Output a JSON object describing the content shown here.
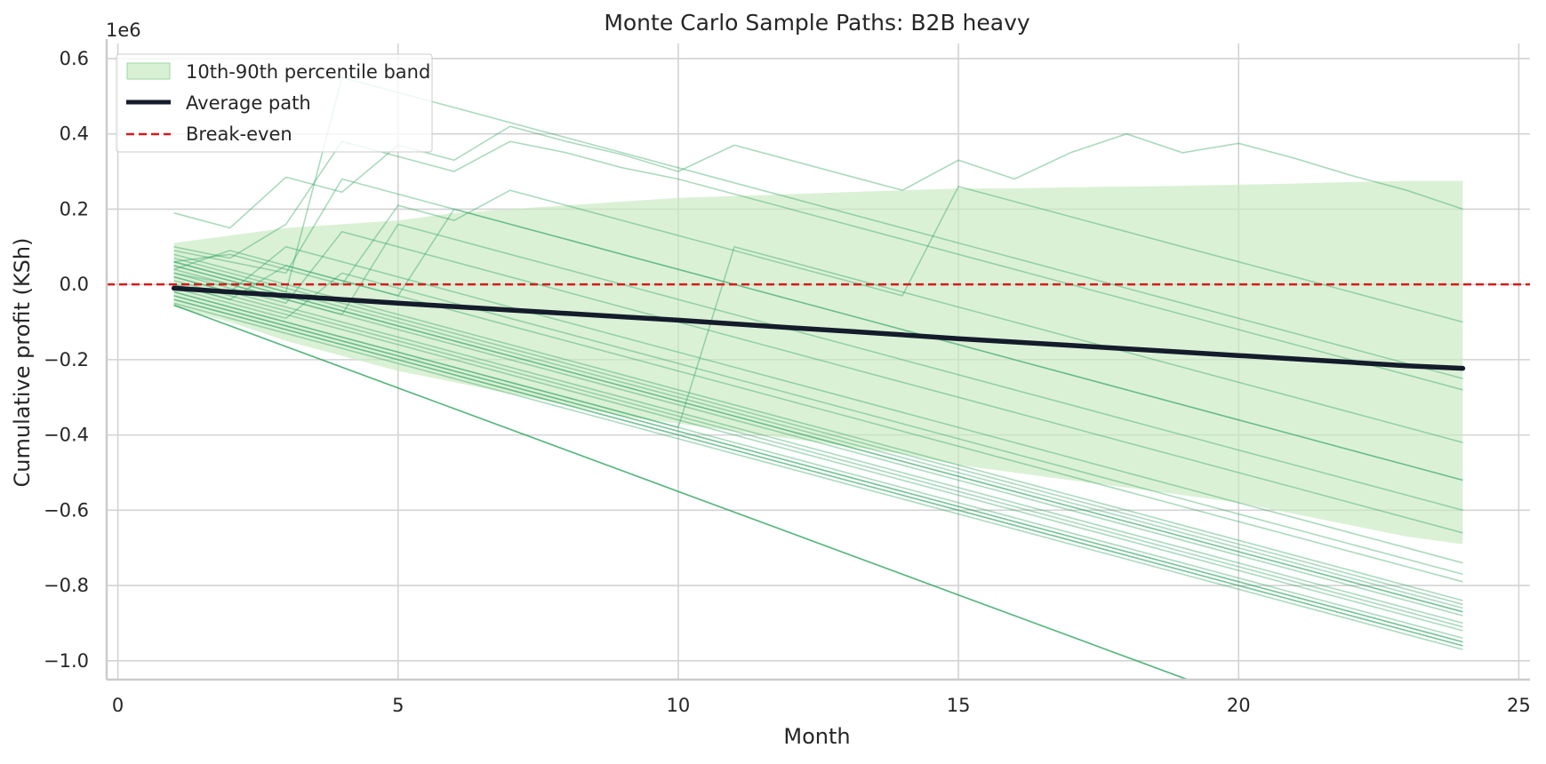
{
  "chart_data": {
    "type": "line",
    "title": "Monte Carlo Sample Paths: B2B heavy",
    "xlabel": "Month",
    "ylabel": "Cumulative profit (KSh)",
    "y_offset_label": "1e6",
    "xlim": [
      -0.2,
      25.2
    ],
    "ylim": [
      -1.05,
      0.64
    ],
    "x_ticks": [
      0,
      5,
      10,
      15,
      20,
      25
    ],
    "x_tick_labels": [
      "0",
      "5",
      "10",
      "15",
      "20",
      "25"
    ],
    "y_ticks": [
      0.6,
      0.4,
      0.2,
      0.0,
      -0.2,
      -0.4,
      -0.6,
      -0.8,
      -1.0
    ],
    "y_tick_labels": [
      "0.6",
      "0.4",
      "0.2",
      "0.0",
      "−0.2",
      "−0.4",
      "−0.6",
      "−0.8",
      "−1.0"
    ],
    "grid": true,
    "legend_position": "top-left",
    "legend": [
      {
        "label": "10th-90th percentile band",
        "kind": "band"
      },
      {
        "label": "Average path",
        "kind": "average"
      },
      {
        "label": "Break-even",
        "kind": "breakeven"
      }
    ],
    "colors": {
      "sample": "#2ca25f",
      "band": "#c7e9c0",
      "average": "#141c2b",
      "breakeven": "#d7191c",
      "grid": "#d3d3d3",
      "axis": "#cccccc"
    },
    "break_even": 0.0,
    "months": [
      1,
      2,
      3,
      4,
      5,
      6,
      7,
      8,
      9,
      10,
      11,
      12,
      13,
      14,
      15,
      16,
      17,
      18,
      19,
      20,
      21,
      22,
      23,
      24
    ],
    "average": [
      -0.01,
      -0.02,
      -0.03,
      -0.04,
      -0.05,
      -0.059,
      -0.068,
      -0.077,
      -0.086,
      -0.095,
      -0.105,
      -0.115,
      -0.124,
      -0.134,
      -0.144,
      -0.153,
      -0.162,
      -0.171,
      -0.18,
      -0.189,
      -0.198,
      -0.207,
      -0.216,
      -0.223
    ],
    "band_upper": [
      0.11,
      0.13,
      0.15,
      0.16,
      0.17,
      0.19,
      0.2,
      0.21,
      0.22,
      0.23,
      0.235,
      0.24,
      0.245,
      0.25,
      0.255,
      0.255,
      0.258,
      0.26,
      0.262,
      0.265,
      0.268,
      0.272,
      0.275,
      0.275
    ],
    "band_lower": [
      -0.06,
      -0.1,
      -0.15,
      -0.19,
      -0.23,
      -0.26,
      -0.29,
      -0.32,
      -0.35,
      -0.37,
      -0.39,
      -0.41,
      -0.43,
      -0.45,
      -0.48,
      -0.5,
      -0.52,
      -0.54,
      -0.56,
      -0.58,
      -0.61,
      -0.64,
      -0.67,
      -0.69
    ],
    "sample_paths": [
      [
        -0.055,
        -0.11,
        -0.165,
        -0.22,
        -0.275,
        -0.33,
        -0.385,
        -0.44,
        -0.495,
        -0.55,
        -0.605,
        -0.66,
        -0.715,
        -0.77,
        -0.825,
        -0.88,
        -0.935,
        -0.99,
        -1.045,
        -1.1,
        -1.155,
        -1.21,
        -1.265,
        -1.32
      ],
      [
        -0.055,
        -0.11,
        -0.165,
        -0.22,
        -0.275,
        -0.33,
        -0.385,
        -0.44,
        -0.495,
        -0.55,
        -0.605,
        -0.66,
        -0.715,
        -0.77,
        -0.825,
        -0.88,
        -0.935,
        -0.99,
        -1.045,
        -1.1,
        -1.155,
        -1.21,
        -1.265,
        -1.32
      ],
      [
        -0.055,
        -0.11,
        -0.165,
        -0.22,
        -0.275,
        -0.33,
        -0.385,
        -0.44,
        -0.495,
        -0.55,
        -0.605,
        -0.66,
        -0.715,
        -0.77,
        -0.825,
        -0.88,
        -0.935,
        -0.99,
        -1.045,
        -1.1,
        -1.155,
        -1.21,
        -1.265,
        -1.32
      ],
      [
        0.19,
        0.15,
        0.285,
        0.245,
        0.37,
        0.33,
        0.42,
        0.38,
        0.345,
        0.3,
        0.37,
        0.33,
        0.29,
        0.25,
        0.33,
        0.28,
        0.35,
        0.4,
        0.35,
        0.375,
        0.335,
        0.29,
        0.25,
        0.2
      ],
      [
        0.06,
        0.02,
        -0.02,
        0.55,
        0.51,
        0.47,
        0.43,
        0.39,
        0.35,
        0.31,
        0.27,
        0.23,
        0.19,
        0.15,
        0.11,
        0.07,
        0.03,
        -0.01,
        -0.05,
        -0.09,
        -0.13,
        -0.17,
        -0.21,
        -0.25
      ],
      [
        0.1,
        0.07,
        0.16,
        0.38,
        0.34,
        0.3,
        0.38,
        0.35,
        0.31,
        0.28,
        0.24,
        0.2,
        0.16,
        0.12,
        0.08,
        0.04,
        0.0,
        -0.04,
        -0.08,
        -0.12,
        -0.16,
        -0.2,
        -0.24,
        -0.28
      ],
      [
        0.09,
        0.06,
        0.03,
        0.28,
        0.24,
        0.2,
        0.16,
        0.12,
        0.08,
        0.04,
        0.0,
        -0.04,
        -0.08,
        -0.12,
        -0.16,
        -0.2,
        -0.24,
        -0.28,
        -0.32,
        -0.36,
        -0.4,
        -0.44,
        -0.48,
        -0.52
      ],
      [
        0.06,
        0.08,
        0.04,
        0.0,
        0.21,
        0.17,
        0.25,
        0.21,
        0.17,
        0.13,
        0.09,
        0.05,
        0.01,
        -0.03,
        0.26,
        0.22,
        0.18,
        0.14,
        0.1,
        0.06,
        0.02,
        -0.02,
        -0.06,
        -0.1
      ],
      [
        0.04,
        0.0,
        -0.04,
        -0.08,
        -0.12,
        -0.16,
        -0.2,
        -0.24,
        -0.28,
        -0.32,
        -0.36,
        -0.4,
        -0.44,
        -0.48,
        -0.52,
        -0.56,
        -0.6,
        -0.64,
        -0.68,
        -0.72,
        -0.76,
        -0.8,
        -0.84,
        -0.88
      ],
      [
        0.02,
        -0.02,
        -0.06,
        -0.1,
        -0.14,
        -0.18,
        -0.22,
        -0.26,
        -0.3,
        -0.34,
        -0.38,
        -0.42,
        -0.46,
        -0.5,
        -0.54,
        -0.58,
        -0.62,
        -0.66,
        -0.7,
        -0.74,
        -0.78,
        -0.82,
        -0.86,
        -0.9
      ],
      [
        0.03,
        -0.01,
        -0.05,
        0.14,
        0.1,
        0.06,
        0.02,
        -0.02,
        -0.06,
        -0.1,
        -0.14,
        -0.18,
        -0.22,
        -0.26,
        -0.3,
        -0.34,
        -0.38,
        -0.42,
        -0.46,
        -0.5,
        -0.54,
        -0.58,
        -0.62,
        -0.66
      ],
      [
        0.0,
        -0.04,
        0.05,
        0.01,
        -0.03,
        -0.07,
        -0.11,
        -0.15,
        -0.19,
        -0.23,
        -0.27,
        -0.31,
        -0.35,
        -0.39,
        -0.43,
        -0.47,
        -0.51,
        -0.55,
        -0.59,
        -0.63,
        -0.67,
        -0.71,
        -0.75,
        -0.79
      ],
      [
        -0.02,
        -0.06,
        -0.1,
        -0.14,
        -0.18,
        -0.22,
        -0.26,
        -0.3,
        -0.34,
        -0.38,
        -0.42,
        -0.46,
        -0.5,
        -0.54,
        -0.58,
        -0.62,
        -0.66,
        -0.7,
        -0.74,
        -0.78,
        -0.82,
        -0.86,
        -0.9,
        -0.94
      ],
      [
        -0.04,
        -0.08,
        -0.12,
        -0.16,
        -0.2,
        -0.24,
        -0.28,
        -0.32,
        -0.36,
        -0.4,
        -0.44,
        -0.48,
        -0.52,
        -0.56,
        -0.6,
        -0.64,
        -0.68,
        -0.72,
        -0.76,
        -0.8,
        -0.84,
        -0.88,
        -0.92,
        -0.96
      ],
      [
        0.08,
        0.04,
        0.0,
        -0.04,
        -0.08,
        -0.12,
        -0.16,
        -0.2,
        -0.24,
        -0.28,
        -0.32,
        -0.36,
        -0.4,
        -0.44,
        -0.48,
        -0.52,
        -0.56,
        -0.6,
        -0.64,
        -0.68,
        -0.72,
        -0.76,
        -0.8,
        -0.84
      ],
      [
        0.05,
        0.01,
        -0.03,
        -0.07,
        -0.11,
        -0.15,
        -0.19,
        -0.23,
        -0.27,
        -0.31,
        -0.35,
        -0.39,
        -0.43,
        -0.47,
        -0.51,
        -0.55,
        -0.59,
        -0.63,
        -0.67,
        -0.71,
        -0.75,
        -0.79,
        -0.83,
        -0.87
      ],
      [
        -0.03,
        -0.07,
        -0.11,
        -0.15,
        -0.19,
        -0.23,
        -0.27,
        -0.31,
        -0.35,
        -0.39,
        -0.43,
        -0.47,
        -0.51,
        -0.55,
        -0.59,
        -0.63,
        -0.67,
        -0.71,
        -0.75,
        -0.79,
        -0.83,
        -0.87,
        -0.91,
        -0.95
      ],
      [
        0.07,
        0.03,
        -0.01,
        -0.05,
        -0.09,
        -0.13,
        -0.17,
        -0.21,
        -0.25,
        -0.29,
        -0.33,
        -0.37,
        -0.41,
        -0.45,
        -0.49,
        -0.53,
        -0.57,
        -0.61,
        -0.65,
        -0.69,
        -0.73,
        -0.77,
        -0.81,
        -0.85
      ],
      [
        0.01,
        -0.03,
        -0.07,
        -0.11,
        -0.15,
        -0.19,
        -0.23,
        -0.27,
        -0.31,
        -0.35,
        -0.39,
        -0.43,
        -0.47,
        -0.51,
        -0.55,
        -0.59,
        -0.63,
        -0.67,
        -0.71,
        -0.75,
        -0.79,
        -0.83,
        -0.87,
        -0.91
      ],
      [
        0.04,
        0.09,
        0.05,
        0.01,
        -0.03,
        0.2,
        0.16,
        0.12,
        0.08,
        0.04,
        0.0,
        -0.04,
        -0.08,
        -0.12,
        -0.16,
        -0.2,
        -0.24,
        -0.28,
        -0.32,
        -0.36,
        -0.4,
        -0.44,
        -0.48,
        -0.52
      ],
      [
        -0.01,
        -0.05,
        -0.09,
        0.03,
        -0.01,
        -0.05,
        -0.09,
        -0.13,
        -0.17,
        -0.21,
        -0.25,
        -0.29,
        -0.33,
        -0.37,
        -0.41,
        -0.45,
        -0.49,
        -0.53,
        -0.57,
        -0.61,
        -0.65,
        -0.69,
        -0.73,
        -0.77
      ],
      [
        0.02,
        -0.02,
        0.1,
        0.06,
        0.02,
        -0.02,
        -0.06,
        -0.1,
        -0.14,
        -0.18,
        -0.22,
        -0.26,
        -0.3,
        -0.34,
        -0.38,
        -0.42,
        -0.46,
        -0.5,
        -0.54,
        -0.58,
        -0.62,
        -0.66,
        -0.7,
        -0.74
      ],
      [
        -0.05,
        -0.09,
        -0.13,
        -0.17,
        -0.21,
        -0.25,
        -0.29,
        -0.33,
        -0.37,
        -0.41,
        -0.45,
        -0.49,
        -0.53,
        -0.57,
        -0.61,
        -0.65,
        -0.69,
        -0.73,
        -0.77,
        -0.81,
        -0.85,
        -0.89,
        -0.93,
        -0.97
      ],
      [
        0.03,
        0.0,
        -0.04,
        -0.08,
        0.16,
        0.12,
        0.08,
        0.04,
        0.0,
        -0.04,
        -0.08,
        -0.12,
        -0.16,
        -0.2,
        -0.24,
        -0.28,
        -0.32,
        -0.36,
        -0.4,
        -0.44,
        -0.48,
        -0.52,
        -0.56,
        -0.6
      ],
      [
        -0.02,
        -0.06,
        -0.1,
        -0.14,
        -0.18,
        -0.22,
        -0.26,
        -0.3,
        -0.34,
        -0.38,
        0.1,
        0.06,
        0.02,
        -0.02,
        -0.06,
        -0.1,
        -0.14,
        -0.18,
        -0.22,
        -0.26,
        -0.3,
        -0.34,
        -0.38,
        -0.42
      ],
      [
        0.0,
        -0.04,
        -0.08,
        -0.12,
        -0.16,
        -0.2,
        -0.24,
        -0.28,
        -0.32,
        -0.36,
        -0.4,
        -0.44,
        -0.48,
        -0.52,
        -0.56,
        -0.6,
        -0.64,
        -0.68,
        -0.72,
        -0.76,
        -0.8,
        -0.84,
        -0.88,
        -0.92
      ],
      [
        0.06,
        0.02,
        -0.02,
        -0.06,
        -0.1,
        -0.14,
        -0.18,
        -0.22,
        -0.26,
        -0.3,
        -0.34,
        -0.38,
        -0.42,
        -0.46,
        -0.5,
        -0.54,
        -0.58,
        -0.62,
        -0.66,
        -0.7,
        -0.74,
        -0.78,
        -0.82,
        -0.86
      ],
      [
        -0.04,
        -0.08,
        -0.12,
        -0.16,
        -0.2,
        -0.24,
        -0.28,
        -0.32,
        -0.36,
        -0.4,
        -0.44,
        -0.48,
        -0.52,
        -0.56,
        -0.6,
        -0.64,
        -0.68,
        -0.72,
        -0.76,
        -0.8,
        -0.84,
        -0.88,
        -0.92,
        -0.96
      ],
      [
        0.05,
        0.01,
        -0.03,
        -0.07,
        -0.11,
        -0.15,
        -0.19,
        -0.23,
        -0.27,
        -0.31,
        -0.35,
        -0.39,
        -0.43,
        -0.47,
        -0.51,
        -0.55,
        -0.59,
        -0.63,
        -0.67,
        -0.71,
        -0.75,
        -0.79,
        -0.83,
        -0.87
      ],
      [
        -0.03,
        -0.07,
        -0.11,
        -0.15,
        -0.19,
        -0.23,
        -0.27,
        -0.31,
        -0.35,
        -0.39,
        -0.43,
        -0.47,
        -0.51,
        -0.55,
        -0.59,
        -0.63,
        -0.67,
        -0.71,
        -0.75,
        -0.79,
        -0.83,
        -0.87,
        -0.91,
        -0.95
      ]
    ]
  }
}
